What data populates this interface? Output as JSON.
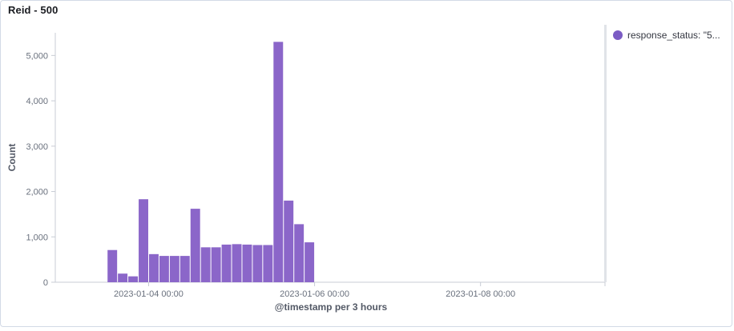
{
  "panel": {
    "title": "Reid - 500"
  },
  "legend": {
    "items": [
      {
        "label": "response_status: \"5...",
        "color": "#7b5cc4",
        "icon": "legend-dot-icon"
      }
    ]
  },
  "colors": {
    "bar": "#8b66c9",
    "axis": "#c8ccd4",
    "tick_text": "#69707d",
    "axis_title": "#535966"
  },
  "chart_data": {
    "type": "bar",
    "xlabel": "@timestamp per 3 hours",
    "ylabel": "Count",
    "ylim": [
      0,
      5500
    ],
    "yticks": [
      0,
      1000,
      2000,
      3000,
      4000,
      5000
    ],
    "ytick_labels": [
      "0",
      "1,000",
      "2,000",
      "3,000",
      "4,000",
      "5,000"
    ],
    "xlim": [
      "2023-01-02 21:00",
      "2023-01-09 12:00"
    ],
    "xticks": [
      "2023-01-04 00:00",
      "2023-01-06 00:00",
      "2023-01-08 00:00"
    ],
    "grid": false,
    "legend_position": "right",
    "bar_interval_hours": 3,
    "series": [
      {
        "name": "response_status: \"5...",
        "x": [
          "2023-01-03 12:00",
          "2023-01-03 15:00",
          "2023-01-03 18:00",
          "2023-01-03 21:00",
          "2023-01-04 00:00",
          "2023-01-04 03:00",
          "2023-01-04 06:00",
          "2023-01-04 09:00",
          "2023-01-04 12:00",
          "2023-01-04 15:00",
          "2023-01-04 18:00",
          "2023-01-04 21:00",
          "2023-01-05 00:00",
          "2023-01-05 03:00",
          "2023-01-05 06:00",
          "2023-01-05 09:00",
          "2023-01-05 12:00",
          "2023-01-05 15:00",
          "2023-01-05 18:00",
          "2023-01-05 21:00"
        ],
        "values": [
          710,
          190,
          130,
          1830,
          620,
          580,
          580,
          580,
          1620,
          770,
          770,
          830,
          840,
          830,
          820,
          820,
          5300,
          1800,
          1280,
          880
        ]
      }
    ]
  }
}
